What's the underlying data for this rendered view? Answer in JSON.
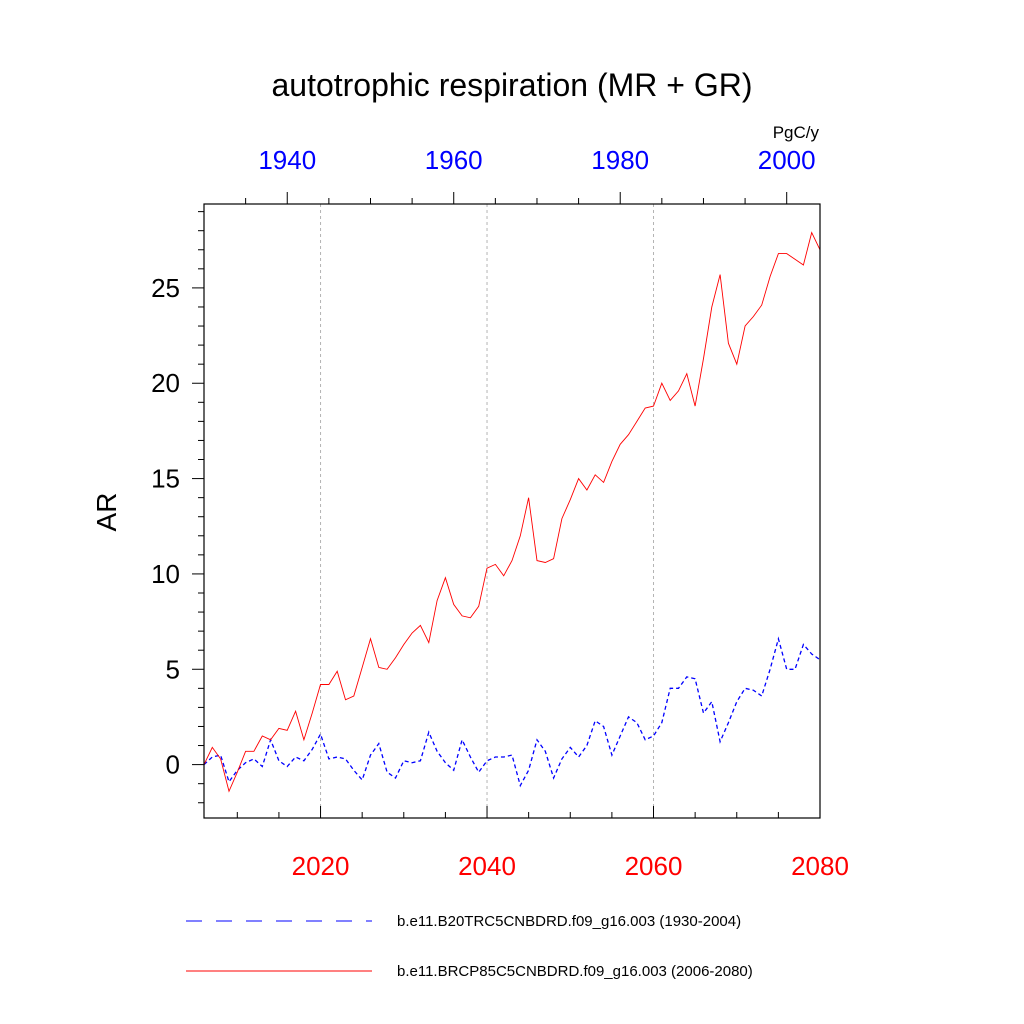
{
  "chart_data": {
    "type": "line",
    "title": "autotrophic respiration (MR + GR)",
    "units": "PgC/y",
    "ylabel": "AR",
    "ylim": [
      -2.8,
      29.4
    ],
    "yticks": [
      0,
      5,
      10,
      15,
      20,
      25
    ],
    "yticklabels": [
      "0",
      "5",
      "10",
      "15",
      "20",
      "25"
    ],
    "grid_x": true,
    "bottom_axis": {
      "xlim": [
        2006,
        2080
      ],
      "ticks": [
        2020,
        2040,
        2060,
        2080
      ],
      "ticklabels": [
        "2020",
        "2040",
        "2060",
        "2080"
      ],
      "color": "#ff0000"
    },
    "top_axis": {
      "xlim": [
        1930,
        2004
      ],
      "ticks": [
        1940,
        1960,
        1980,
        2000
      ],
      "ticklabels": [
        "1940",
        "1960",
        "1980",
        "2000"
      ],
      "color": "#0000ff"
    },
    "series": [
      {
        "name": "b.e11.B20TRC5CNBDRD.f09_g16.003 (1930-2004)",
        "color": "#0000ff",
        "dash": "dashed",
        "x_start": 1930,
        "values": [
          0.0,
          0.4,
          0.5,
          -0.9,
          -0.3,
          0.1,
          0.3,
          -0.1,
          1.3,
          0.2,
          -0.1,
          0.4,
          0.2,
          0.8,
          1.6,
          0.3,
          0.4,
          0.3,
          -0.3,
          -0.8,
          0.5,
          1.1,
          -0.4,
          -0.7,
          0.2,
          0.1,
          0.2,
          1.7,
          0.7,
          0.1,
          -0.3,
          1.3,
          0.4,
          -0.4,
          0.2,
          0.4,
          0.4,
          0.5,
          -1.1,
          -0.3,
          1.3,
          0.7,
          -0.7,
          0.3,
          0.9,
          0.4,
          1.0,
          2.3,
          2.0,
          0.5,
          1.5,
          2.5,
          2.2,
          1.3,
          1.5,
          2.2,
          4.0,
          4.0,
          4.6,
          4.5,
          2.7,
          3.3,
          1.2,
          2.2,
          3.3,
          4.0,
          3.9,
          3.6,
          5.0,
          6.6,
          5.0,
          5.0,
          6.3,
          5.8,
          5.5
        ]
      },
      {
        "name": "b.e11.BRCP85C5CNBDRD.f09_g16.003 (2006-2080)",
        "color": "#ff0000",
        "dash": "solid",
        "x_start": 2006,
        "values": [
          0.0,
          0.9,
          0.3,
          -1.4,
          -0.4,
          0.7,
          0.7,
          1.5,
          1.3,
          1.9,
          1.8,
          2.8,
          1.3,
          2.7,
          4.2,
          4.2,
          4.9,
          3.4,
          3.6,
          5.1,
          6.6,
          5.1,
          5.0,
          5.6,
          6.3,
          6.9,
          7.3,
          6.4,
          8.6,
          9.8,
          8.4,
          7.8,
          7.7,
          8.3,
          10.3,
          10.5,
          9.9,
          10.7,
          12.0,
          14.0,
          10.7,
          10.6,
          10.8,
          12.9,
          13.9,
          15.0,
          14.4,
          15.2,
          14.8,
          15.9,
          16.8,
          17.3,
          18.0,
          18.7,
          18.8,
          20.0,
          19.1,
          19.6,
          20.5,
          18.8,
          21.3,
          24.0,
          25.7,
          22.1,
          21.0,
          23.0,
          23.5,
          24.1,
          25.6,
          26.8,
          26.8,
          26.5,
          26.2,
          27.9,
          27.0
        ]
      }
    ],
    "legend_position": "bottom"
  }
}
